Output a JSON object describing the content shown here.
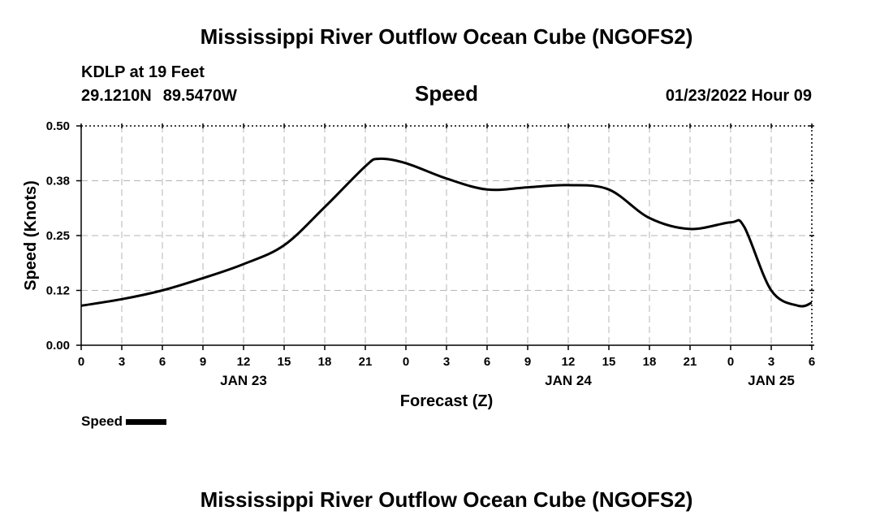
{
  "header": {
    "title": "Mississippi River Outflow Ocean Cube (NGOFS2)",
    "station": "KDLP at 19 Feet",
    "latitude": "29.1210N",
    "longitude": "89.5470W",
    "datetime": "01/23/2022 Hour 09"
  },
  "footer": {
    "title": "Mississippi River Outflow Ocean Cube (NGOFS2)"
  },
  "legend": {
    "label": "Speed",
    "color": "#000000"
  },
  "chart_data": {
    "type": "line",
    "title": "Speed",
    "xlabel": "Forecast (Z)",
    "ylabel": "Speed (Knots)",
    "ylim": [
      0,
      0.5
    ],
    "xlim": [
      0,
      54
    ],
    "yticks": [
      "0.00",
      "0.12",
      "0.25",
      "0.38",
      "0.50"
    ],
    "xticks": [
      "0",
      "3",
      "6",
      "9",
      "12",
      "15",
      "18",
      "21",
      "0",
      "3",
      "6",
      "9",
      "12",
      "15",
      "18",
      "21",
      "0",
      "3",
      "6"
    ],
    "date_labels": [
      {
        "label": "JAN 23",
        "at_hour": 12
      },
      {
        "label": "JAN 24",
        "at_hour": 36
      },
      {
        "label": "JAN 25",
        "at_hour": 51
      }
    ],
    "grid": true,
    "series": [
      {
        "name": "Speed",
        "x": [
          0,
          3,
          6,
          9,
          12,
          15,
          18,
          21,
          22,
          24,
          27,
          30,
          33,
          36,
          39,
          42,
          45,
          48,
          49,
          51,
          53,
          54
        ],
        "y": [
          0.09,
          0.105,
          0.125,
          0.153,
          0.185,
          0.228,
          0.315,
          0.408,
          0.425,
          0.415,
          0.38,
          0.355,
          0.36,
          0.365,
          0.355,
          0.29,
          0.265,
          0.28,
          0.27,
          0.125,
          0.09,
          0.097
        ]
      }
    ]
  }
}
